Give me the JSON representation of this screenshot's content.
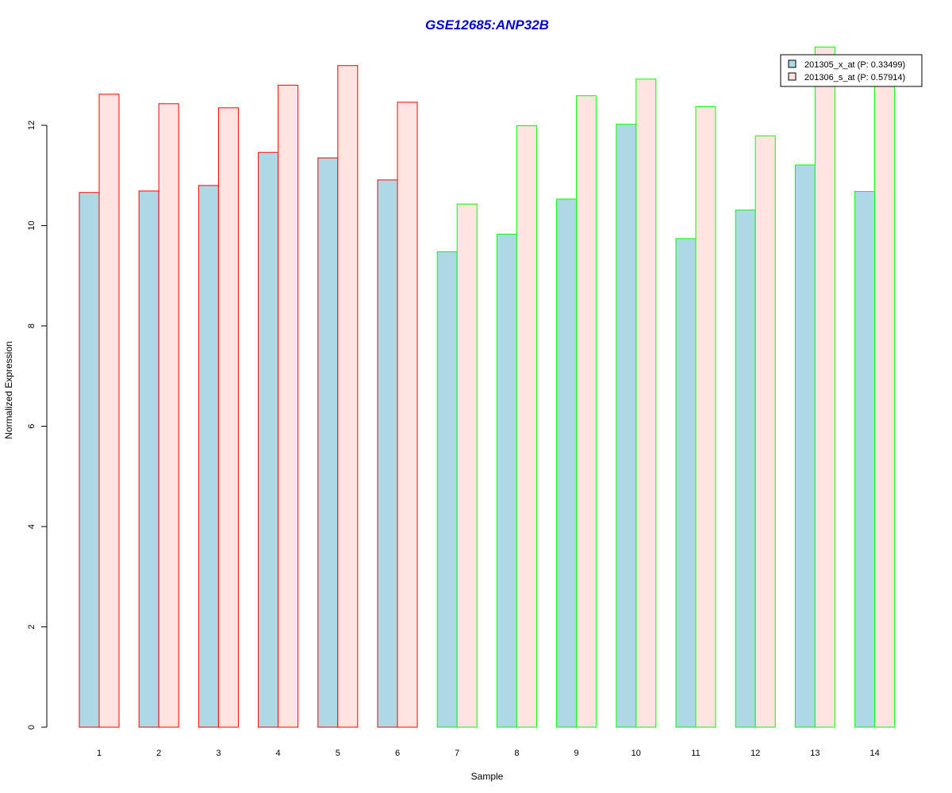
{
  "colors": {
    "series_fills": [
      "#add8e6",
      "#ffe4e1"
    ],
    "group_borders": {
      "A": "#ff0000",
      "B": "#00ff00"
    },
    "title": "#0000cc",
    "axis": "#000000"
  },
  "chart_data": {
    "type": "bar",
    "title": "GSE12685:ANP32B",
    "xlabel": "Sample",
    "ylabel": "Normalized Expression",
    "ylim": [
      0,
      13
    ],
    "yticks": [
      0,
      2,
      4,
      6,
      8,
      10,
      12
    ],
    "grid": false,
    "legend_position": "top-right",
    "categories": [
      "1",
      "2",
      "3",
      "4",
      "5",
      "6",
      "7",
      "8",
      "9",
      "10",
      "11",
      "12",
      "13",
      "14"
    ],
    "groups": [
      "A",
      "A",
      "A",
      "A",
      "A",
      "A",
      "B",
      "B",
      "B",
      "B",
      "B",
      "B",
      "B",
      "B"
    ],
    "series": [
      {
        "name": "201305_x_at (P: 0.33499)",
        "values": [
          10.66,
          10.69,
          10.8,
          11.46,
          11.35,
          10.91,
          9.48,
          9.83,
          10.53,
          12.02,
          9.74,
          10.31,
          11.21,
          10.68
        ]
      },
      {
        "name": "201306_s_at (P: 0.57914)",
        "values": [
          12.62,
          12.43,
          12.35,
          12.8,
          13.19,
          12.46,
          10.43,
          11.99,
          12.59,
          12.92,
          12.37,
          11.79,
          13.56,
          12.89
        ]
      }
    ]
  }
}
